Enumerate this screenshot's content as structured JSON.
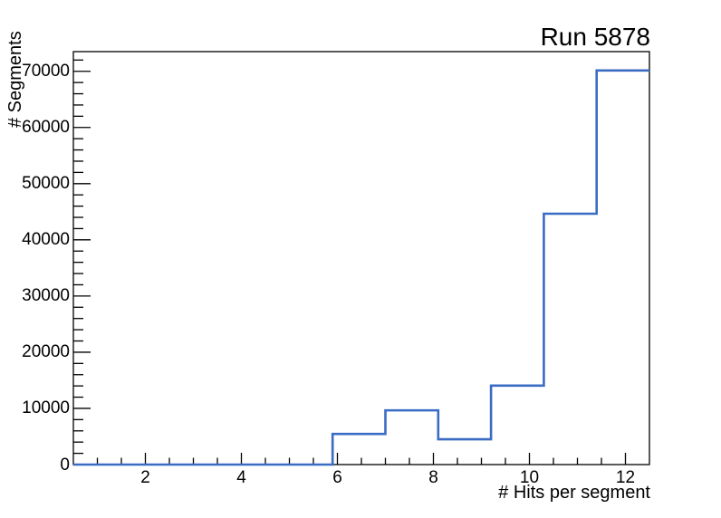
{
  "chart_data": {
    "type": "step-histogram",
    "title": "Run 5878",
    "xlabel": "# Hits per segment",
    "ylabel": "# Segments",
    "xlim": [
      0.5,
      12.5
    ],
    "ylim": [
      0,
      73500
    ],
    "x_major_ticks": [
      2,
      4,
      6,
      8,
      10,
      12
    ],
    "x_minor_tick_step": 0.5,
    "y_major_ticks": [
      0,
      10000,
      20000,
      30000,
      40000,
      50000,
      60000,
      70000
    ],
    "y_minor_tick_step": 2000,
    "grid": false,
    "legend": false,
    "frame_color": "#000000",
    "line_color": "#3a6cc4",
    "bins": [
      {
        "x0": 0.5,
        "x1": 5.9,
        "count": 0
      },
      {
        "x0": 5.9,
        "x1": 7.0,
        "count": 5450
      },
      {
        "x0": 7.0,
        "x1": 8.1,
        "count": 9650
      },
      {
        "x0": 8.1,
        "x1": 9.2,
        "count": 4500
      },
      {
        "x0": 9.2,
        "x1": 10.3,
        "count": 14050
      },
      {
        "x0": 10.3,
        "x1": 11.4,
        "count": 44650
      },
      {
        "x0": 11.4,
        "x1": 12.5,
        "count": 70150
      }
    ]
  }
}
